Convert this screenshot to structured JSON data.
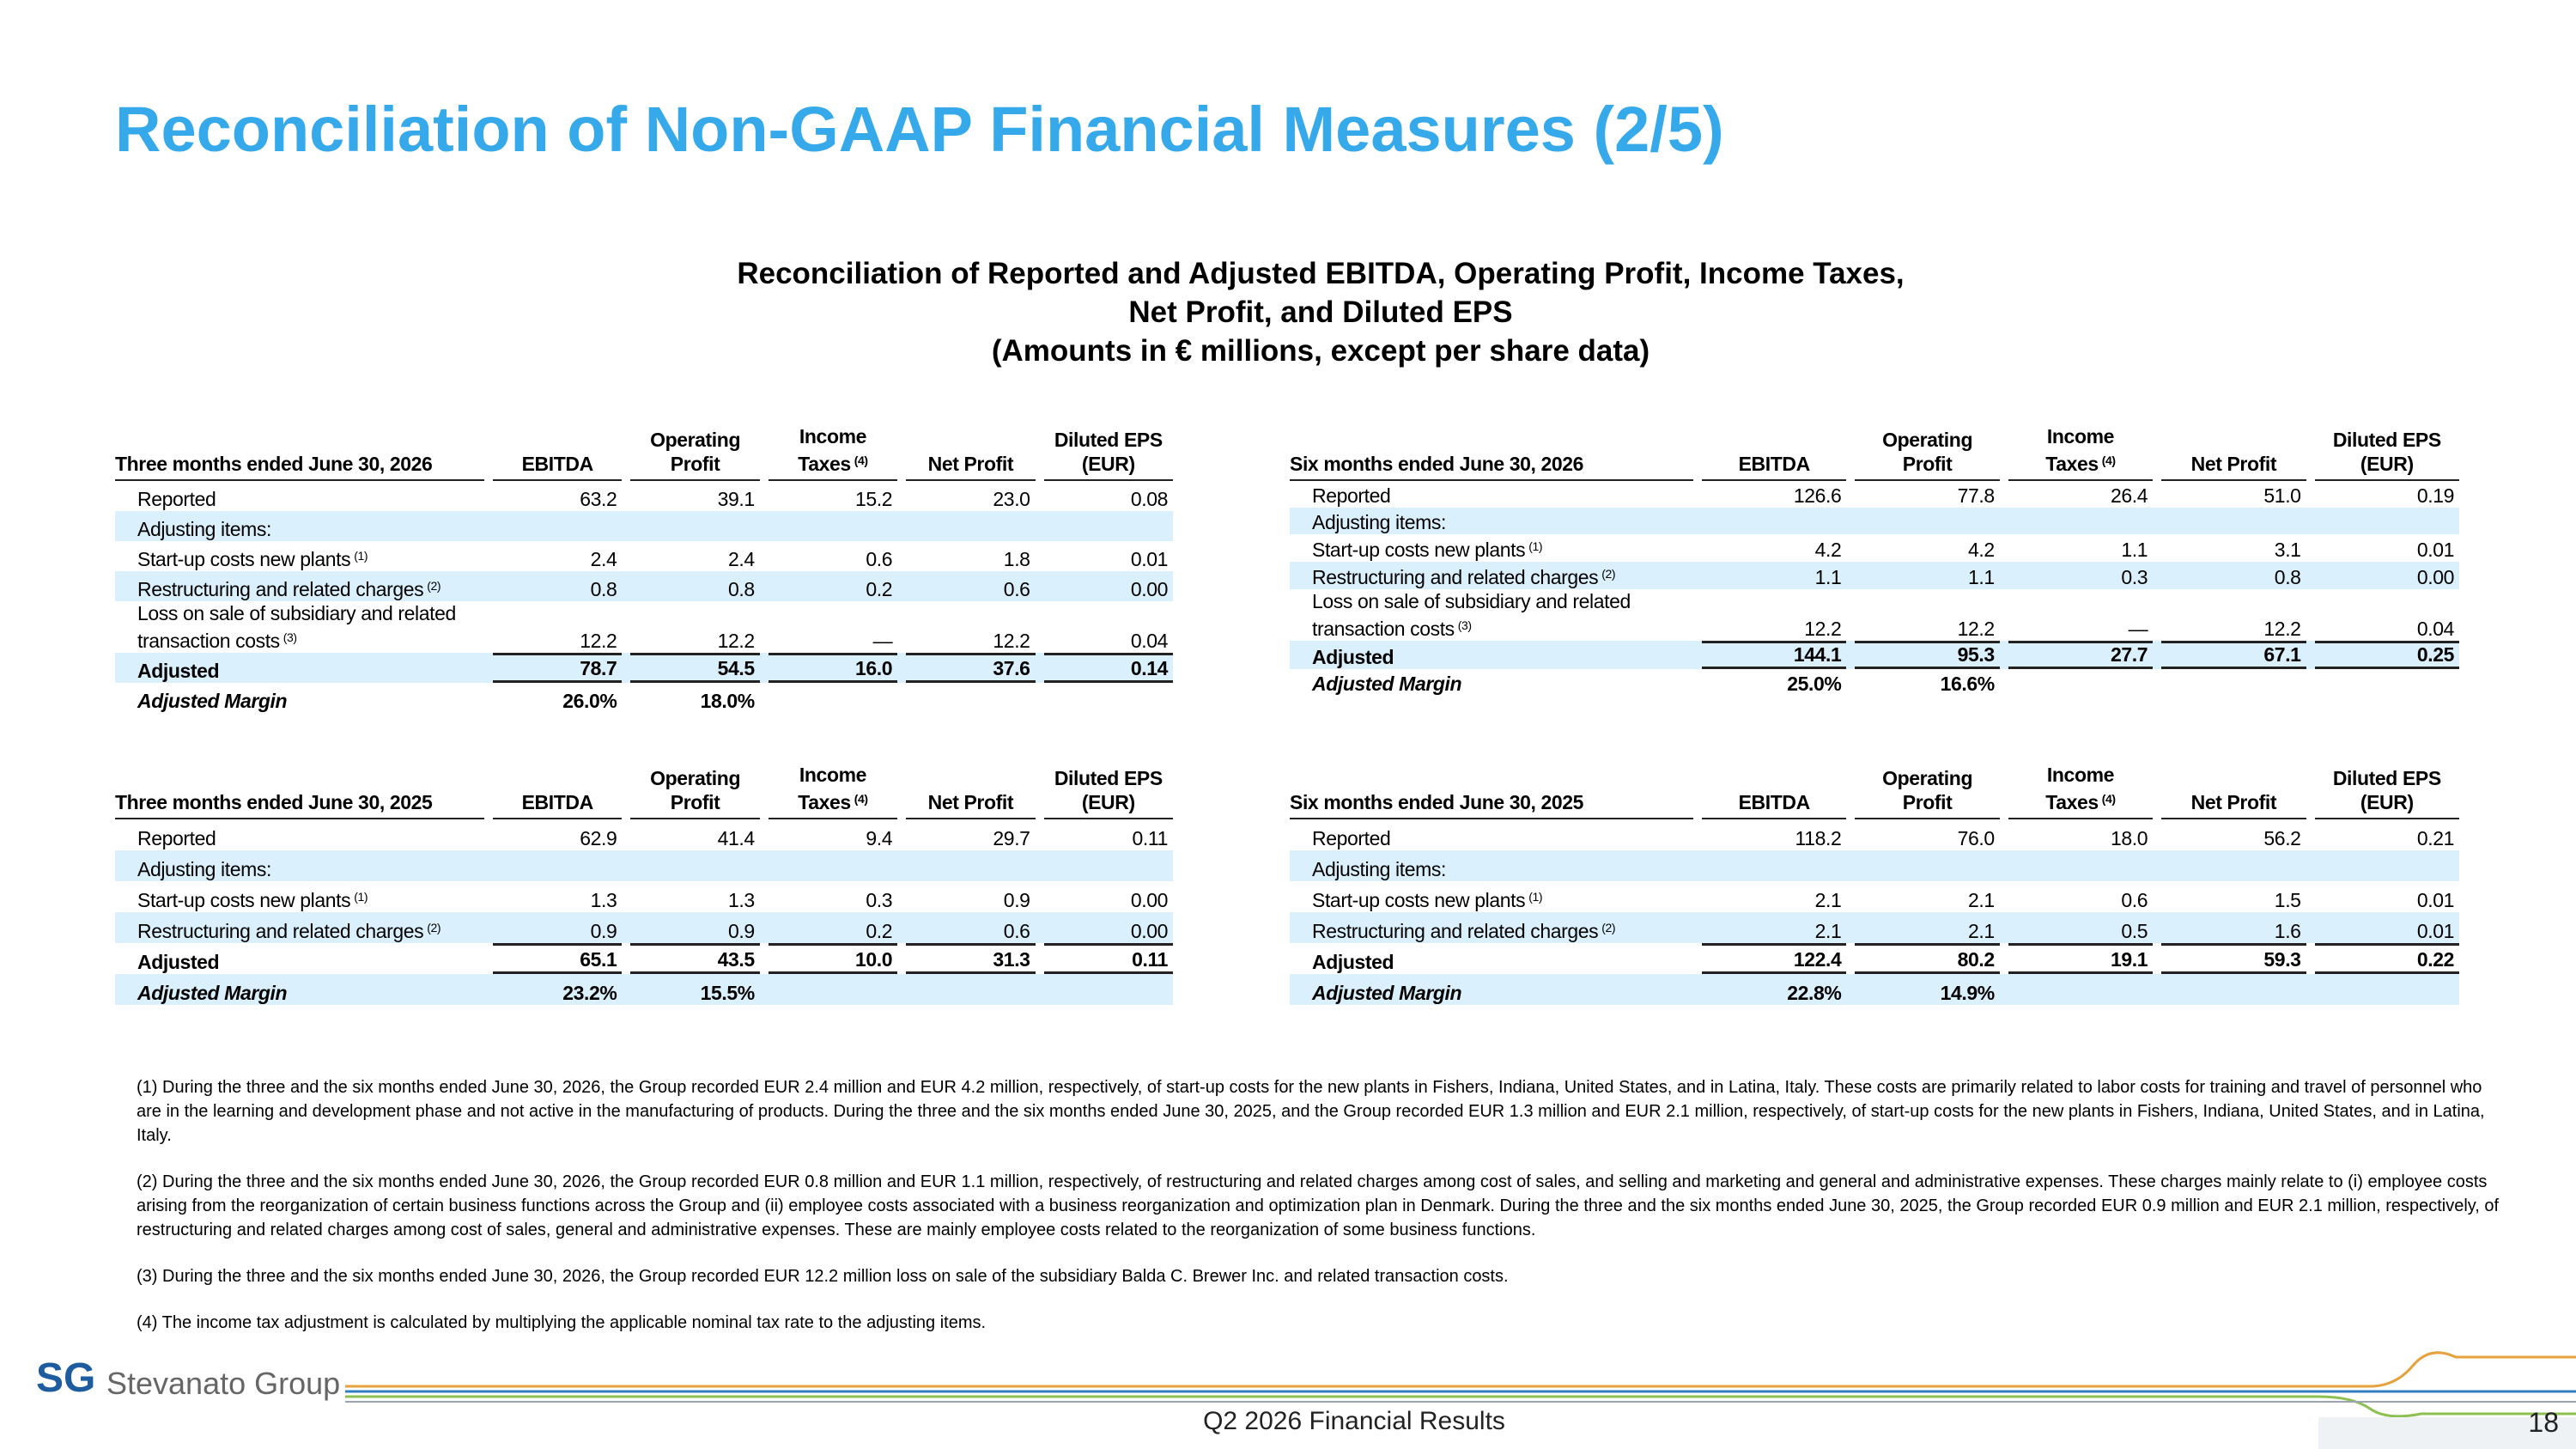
{
  "title": "Reconciliation of Non-GAAP Financial Measures (2/5)",
  "subtitle": [
    "Reconciliation of Reported and Adjusted EBITDA, Operating Profit, Income Taxes,",
    "Net Profit, and Diluted EPS",
    "(Amounts in € millions, except per share data)"
  ],
  "tables": [
    {
      "period": "Three months ended June 30, 2026",
      "columns": [
        {
          "label": "EBITDA"
        },
        {
          "label": "Operating Profit"
        },
        {
          "label": "Income Taxes",
          "note": "(4)"
        },
        {
          "label": "Net Profit"
        },
        {
          "label": "Diluted EPS (EUR)"
        }
      ],
      "rows": [
        {
          "label": "Reported",
          "values": [
            "63.2",
            "39.1",
            "15.2",
            "23.0",
            "0.08"
          ]
        },
        {
          "label": "Adjusting items:",
          "values": []
        },
        {
          "label": "Start-up costs new plants",
          "note": "(1)",
          "values": [
            "2.4",
            "2.4",
            "0.6",
            "1.8",
            "0.01"
          ]
        },
        {
          "label": "Restructuring and related charges",
          "note": "(2)",
          "values": [
            "0.8",
            "0.8",
            "0.2",
            "0.6",
            "0.00"
          ]
        },
        {
          "label": "Loss on sale of subsidiary and related transaction costs",
          "note": "(3)",
          "values": [
            "12.2",
            "12.2",
            "—",
            "12.2",
            "0.04"
          ]
        },
        {
          "label": "Adjusted",
          "values": [
            "78.7",
            "54.5",
            "16.0",
            "37.6",
            "0.14"
          ]
        },
        {
          "label": "Adjusted Margin",
          "values": [
            "26.0%",
            "18.0%"
          ]
        }
      ]
    },
    {
      "period": "Six months ended June 30, 2026",
      "columns": [
        {
          "label": "EBITDA"
        },
        {
          "label": "Operating Profit"
        },
        {
          "label": "Income Taxes",
          "note": "(4)"
        },
        {
          "label": "Net Profit"
        },
        {
          "label": "Diluted EPS (EUR)"
        }
      ],
      "rows": [
        {
          "label": "Reported",
          "values": [
            "126.6",
            "77.8",
            "26.4",
            "51.0",
            "0.19"
          ]
        },
        {
          "label": "Adjusting items:",
          "values": []
        },
        {
          "label": "Start-up costs new plants",
          "note": "(1)",
          "values": [
            "4.2",
            "4.2",
            "1.1",
            "3.1",
            "0.01"
          ]
        },
        {
          "label": "Restructuring and related charges",
          "note": "(2)",
          "values": [
            "1.1",
            "1.1",
            "0.3",
            "0.8",
            "0.00"
          ]
        },
        {
          "label": "Loss on sale of subsidiary and related transaction costs",
          "note": "(3)",
          "values": [
            "12.2",
            "12.2",
            "—",
            "12.2",
            "0.04"
          ]
        },
        {
          "label": "Adjusted",
          "values": [
            "144.1",
            "95.3",
            "27.7",
            "67.1",
            "0.25"
          ]
        },
        {
          "label": "Adjusted Margin",
          "values": [
            "25.0%",
            "16.6%"
          ]
        }
      ]
    },
    {
      "period": "Three months ended June 30, 2025",
      "columns": [
        {
          "label": "EBITDA"
        },
        {
          "label": "Operating Profit"
        },
        {
          "label": "Income Taxes",
          "note": "(4)"
        },
        {
          "label": "Net Profit"
        },
        {
          "label": "Diluted EPS (EUR)"
        }
      ],
      "rows": [
        {
          "label": "Reported",
          "values": [
            "62.9",
            "41.4",
            "9.4",
            "29.7",
            "0.11"
          ]
        },
        {
          "label": "Adjusting items:",
          "values": []
        },
        {
          "label": "Start-up costs new plants",
          "note": "(1)",
          "values": [
            "1.3",
            "1.3",
            "0.3",
            "0.9",
            "0.00"
          ]
        },
        {
          "label": "Restructuring and related charges",
          "note": "(2)",
          "values": [
            "0.9",
            "0.9",
            "0.2",
            "0.6",
            "0.00"
          ]
        },
        {
          "label": "Adjusted",
          "values": [
            "65.1",
            "43.5",
            "10.0",
            "31.3",
            "0.11"
          ]
        },
        {
          "label": "Adjusted Margin",
          "values": [
            "23.2%",
            "15.5%"
          ]
        }
      ]
    },
    {
      "period": "Six months ended June 30, 2025",
      "columns": [
        {
          "label": "EBITDA"
        },
        {
          "label": "Operating Profit"
        },
        {
          "label": "Income Taxes",
          "note": "(4)"
        },
        {
          "label": "Net Profit"
        },
        {
          "label": "Diluted EPS (EUR)"
        }
      ],
      "rows": [
        {
          "label": "Reported",
          "values": [
            "118.2",
            "76.0",
            "18.0",
            "56.2",
            "0.21"
          ]
        },
        {
          "label": "Adjusting items:",
          "values": []
        },
        {
          "label": "Start-up costs new plants",
          "note": "(1)",
          "values": [
            "2.1",
            "2.1",
            "0.6",
            "1.5",
            "0.01"
          ]
        },
        {
          "label": "Restructuring and related charges",
          "note": "(2)",
          "values": [
            "2.1",
            "2.1",
            "0.5",
            "1.6",
            "0.01"
          ]
        },
        {
          "label": "Adjusted",
          "values": [
            "122.4",
            "80.2",
            "19.1",
            "59.3",
            "0.22"
          ]
        },
        {
          "label": "Adjusted Margin",
          "values": [
            "22.8%",
            "14.9%"
          ]
        }
      ]
    }
  ],
  "footnotes": [
    "(1) During the three and the six months ended June 30, 2026, the Group recorded EUR 2.4 million and EUR 4.2 million, respectively, of start-up costs for the new plants in Fishers, Indiana, United States, and in Latina, Italy. These costs are primarily related to labor costs for training and travel of personnel who are in the learning and development phase and not active in the manufacturing of products. During the three and the six months ended June 30, 2025, and the Group recorded EUR 1.3 million and EUR 2.1 million, respectively, of start-up costs for the new plants in Fishers, Indiana, United States, and in Latina, Italy.",
    "(2) During the three and the six months ended June 30, 2026, the Group recorded EUR 0.8 million and EUR 1.1 million, respectively, of restructuring and related charges among cost of sales, and selling and marketing and general and administrative expenses. These charges mainly relate to (i) employee costs arising from the reorganization of certain business functions across the Group and (ii) employee costs associated with a business reorganization and optimization plan in Denmark. During the three and the six months ended June 30, 2025, the Group recorded EUR 0.9 million and EUR 2.1 million, respectively, of restructuring and related charges among cost of sales, general and administrative expenses. These are mainly employee costs related to the reorganization of some business functions.",
    "(3) During the three and the six months ended June 30, 2026, the Group recorded EUR 12.2 million loss on sale of the subsidiary Balda C. Brewer Inc. and related transaction costs.",
    "(4) The income tax adjustment is calculated by multiplying the applicable nominal tax rate to the adjusting items."
  ],
  "logo": {
    "mark": "SG",
    "name": "Stevanato Group"
  },
  "footer": "Q2 2026 Financial Results",
  "page_number": "18"
}
